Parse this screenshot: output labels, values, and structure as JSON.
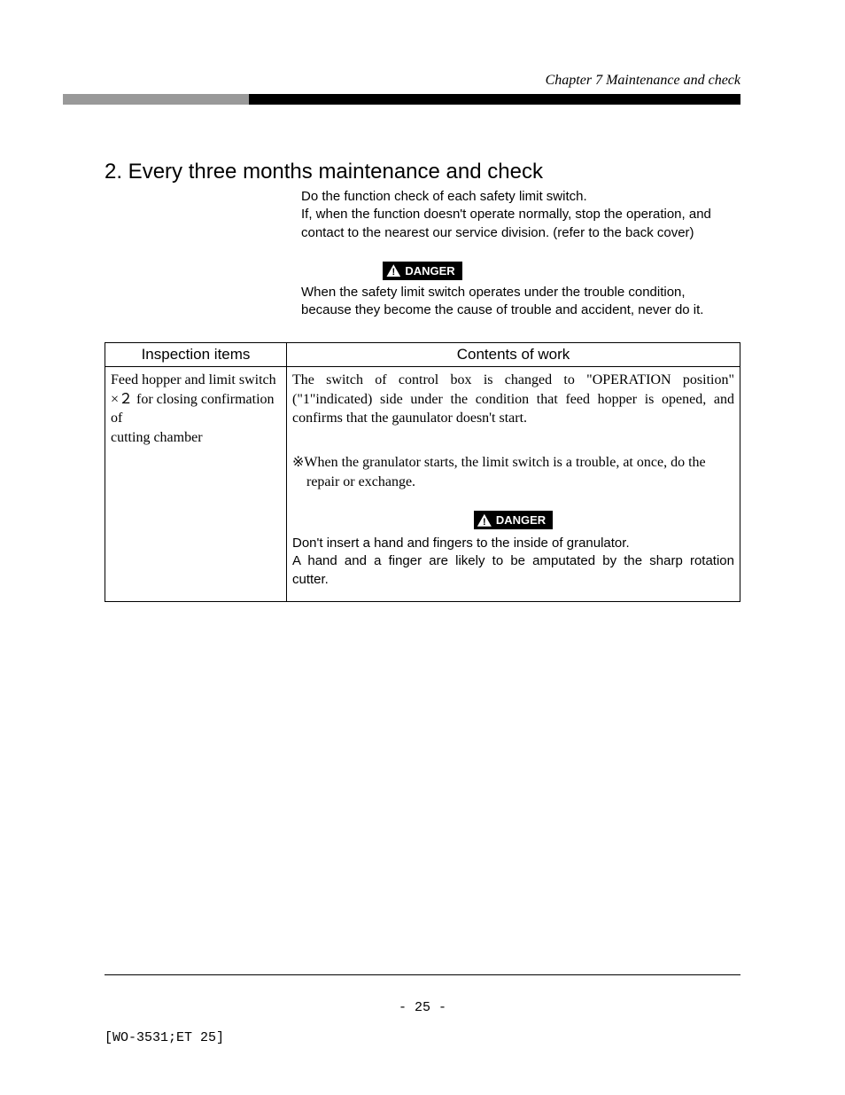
{
  "header": {
    "chapter_label": "Chapter 7   Maintenance and check",
    "bar_left_color": "#999999",
    "bar_right_color": "#000000"
  },
  "section": {
    "title": "2. Every three months maintenance and check",
    "intro_line1": "Do the function check of each safety limit switch.",
    "intro_line2": "If, when the function doesn't operate normally, stop the operation, and",
    "intro_line3": "contact to the nearest our service division. (refer to the back cover)"
  },
  "danger_top": {
    "label": "DANGER",
    "line1": "When the safety limit switch operates under the trouble condition,",
    "line2": "because they become the cause of trouble and accident, never do it."
  },
  "table": {
    "columns": [
      "Inspection items",
      "Contents of work"
    ],
    "row": {
      "inspection_l1": "Feed hopper and limit switch",
      "inspection_l2": "×２ for closing confirmation of",
      "inspection_l3": "cutting chamber",
      "contents_l1": "The  switch  of  control  box  is  changed  to  \"OPERATION  position\"",
      "contents_l2": "(\"1\"indicated)  side  under  the  condition  that  feed  hopper  is  opened,  and",
      "contents_l3": "confirms that the gaunulator doesn't start.",
      "note_sym": "※",
      "note_l1": "When the granulator starts, the limit switch is a trouble, at once, do the",
      "note_l2": "repair or exchange.",
      "inner_danger_label": "DANGER",
      "inner_danger_l1": "Don't insert a hand and fingers to the inside of granulator.",
      "inner_danger_l2": "A hand and a finger are likely to be amputated by the sharp rotation",
      "inner_danger_l3": "cutter."
    }
  },
  "footer": {
    "page_number": "- 25 -",
    "doc_code": "[WO-3531;ET 25]"
  }
}
